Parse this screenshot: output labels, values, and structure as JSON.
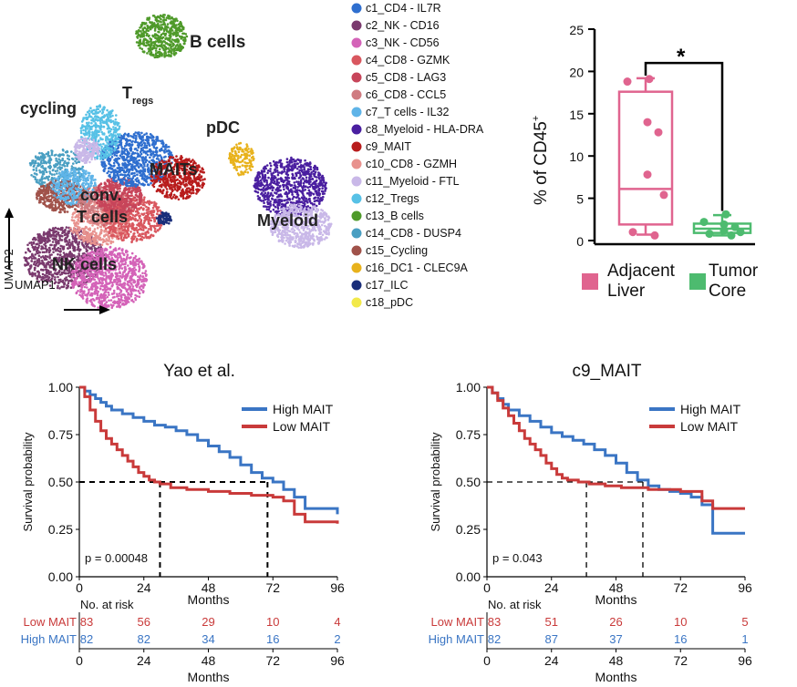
{
  "umap": {
    "axis_x": "UMAP1",
    "axis_y": "UMAP2",
    "labels": {
      "bcells": "B cells",
      "tregs_main": "T",
      "tregs_sub": "regs",
      "cycling": "cycling",
      "pdc": "pDC",
      "conv1": "conv.",
      "conv2": "T cells",
      "maits": "MAITs",
      "myeloid": "Myeloid",
      "nk": "NK cells"
    },
    "clusters": [
      {
        "label": "c1_CD4 - IL7R",
        "color": "#2f6fcf"
      },
      {
        "label": "c2_NK - CD16",
        "color": "#7a3a6e"
      },
      {
        "label": "c3_NK - CD56",
        "color": "#d463b8"
      },
      {
        "label": "c4_CD8 - GZMK",
        "color": "#d9575f"
      },
      {
        "label": "c5_CD8 - LAG3",
        "color": "#c7455a"
      },
      {
        "label": "c6_CD8 - CCL5",
        "color": "#cf7b80"
      },
      {
        "label": "c7_T cells - IL32",
        "color": "#5fb4e8"
      },
      {
        "label": "c8_Myeloid - HLA-DRA",
        "color": "#4a1fa0"
      },
      {
        "label": "c9_MAIT",
        "color": "#b81c1c"
      },
      {
        "label": "c10_CD8 - GZMH",
        "color": "#e8928e"
      },
      {
        "label": "c11_Myeloid - FTL",
        "color": "#c9b8e8"
      },
      {
        "label": "c12_Tregs",
        "color": "#57c1e6"
      },
      {
        "label": "c13_B cells",
        "color": "#4f9a2a"
      },
      {
        "label": "c14_CD8 - DUSP4",
        "color": "#4a9fc2"
      },
      {
        "label": "c15_Cycling",
        "color": "#a0524a"
      },
      {
        "label": "c16_DC1 - CLEC9A",
        "color": "#e8b21c"
      },
      {
        "label": "c17_ILC",
        "color": "#1a2e7a"
      },
      {
        "label": "c18_pDC",
        "color": "#f2e94a"
      }
    ]
  },
  "chart_data": [
    {
      "type": "box",
      "ylabel_main": "% of  CD45",
      "ylabel_sup": "+",
      "ylim": [
        0,
        25
      ],
      "yticks": [
        0,
        5,
        10,
        15,
        20,
        25
      ],
      "significance": "*",
      "groups": [
        {
          "name_line1": "Adjacent",
          "name_line2": "Liver",
          "color": "#e0648f",
          "min": 0.7,
          "q1": 1.9,
          "median": 6.1,
          "q3": 17.6,
          "max": 19.2,
          "points": [
            19.1,
            18.8,
            14.0,
            12.8,
            7.8,
            5.4,
            1.0,
            0.6
          ]
        },
        {
          "name_line1": "Tumor",
          "name_line2": "Core",
          "color": "#4dbb6f",
          "min": 0.6,
          "q1": 0.9,
          "median": 1.4,
          "q3": 2.0,
          "max": 3.0,
          "points": [
            3.1,
            2.2,
            1.9,
            1.6,
            1.2,
            1.0,
            0.8,
            0.6
          ]
        }
      ]
    },
    {
      "type": "line",
      "title": "Yao et al.",
      "xlabel": "Months",
      "ylabel": "Survival probability",
      "xlim": [
        0,
        96
      ],
      "ylim": [
        0,
        1
      ],
      "xticks": [
        0,
        24,
        48,
        72,
        96
      ],
      "yticks": [
        "0.00",
        "0.25",
        "0.50",
        "0.75",
        "1.00"
      ],
      "pvalue": "p = 0.00048",
      "median_lines": [
        30,
        70
      ],
      "series": [
        {
          "name": "High MAIT",
          "color": "#3a75c4",
          "x": [
            0,
            2,
            4,
            6,
            8,
            10,
            12,
            16,
            20,
            24,
            28,
            32,
            36,
            40,
            44,
            48,
            52,
            56,
            60,
            64,
            68,
            72,
            76,
            80,
            84,
            96
          ],
          "y": [
            1.0,
            0.98,
            0.96,
            0.94,
            0.92,
            0.9,
            0.88,
            0.86,
            0.84,
            0.82,
            0.8,
            0.79,
            0.77,
            0.75,
            0.72,
            0.69,
            0.66,
            0.63,
            0.59,
            0.55,
            0.52,
            0.5,
            0.46,
            0.42,
            0.36,
            0.33
          ]
        },
        {
          "name": "Low MAIT",
          "color": "#c93a3a",
          "x": [
            0,
            2,
            4,
            6,
            8,
            10,
            12,
            14,
            16,
            18,
            20,
            22,
            24,
            26,
            28,
            30,
            34,
            40,
            48,
            56,
            64,
            72,
            76,
            80,
            84,
            96
          ],
          "y": [
            1.0,
            0.95,
            0.88,
            0.82,
            0.77,
            0.73,
            0.7,
            0.67,
            0.64,
            0.61,
            0.58,
            0.55,
            0.53,
            0.51,
            0.5,
            0.49,
            0.47,
            0.46,
            0.45,
            0.44,
            0.43,
            0.42,
            0.4,
            0.33,
            0.29,
            0.28
          ]
        }
      ],
      "risk_table": {
        "heading": "No. at risk",
        "xlabel": "Months",
        "rows": [
          {
            "label": "Low MAIT",
            "color": "#c93a3a",
            "values": [
              "83",
              "56",
              "29",
              "10",
              "4"
            ]
          },
          {
            "label": "High MAIT",
            "color": "#3a75c4",
            "values": [
              "82",
              "82",
              "34",
              "16",
              "2"
            ]
          }
        ]
      }
    },
    {
      "type": "line",
      "title": "c9_MAIT",
      "xlabel": "Months",
      "ylabel": "Survival probability",
      "xlim": [
        0,
        96
      ],
      "ylim": [
        0,
        1
      ],
      "xticks": [
        0,
        24,
        48,
        72,
        96
      ],
      "yticks": [
        "0.00",
        "0.25",
        "0.50",
        "0.75",
        "1.00"
      ],
      "pvalue": "p = 0.043",
      "median_lines": [
        37,
        58
      ],
      "series": [
        {
          "name": "High MAIT",
          "color": "#3a75c4",
          "x": [
            0,
            2,
            4,
            6,
            8,
            12,
            16,
            20,
            24,
            28,
            32,
            36,
            40,
            44,
            48,
            52,
            56,
            60,
            64,
            68,
            72,
            76,
            80,
            84,
            96
          ],
          "y": [
            1.0,
            0.97,
            0.94,
            0.91,
            0.88,
            0.85,
            0.82,
            0.79,
            0.76,
            0.74,
            0.72,
            0.7,
            0.67,
            0.64,
            0.6,
            0.55,
            0.51,
            0.48,
            0.46,
            0.45,
            0.44,
            0.42,
            0.38,
            0.23,
            0.23
          ]
        },
        {
          "name": "Low MAIT",
          "color": "#c93a3a",
          "x": [
            0,
            2,
            4,
            6,
            8,
            10,
            12,
            14,
            16,
            18,
            20,
            22,
            24,
            26,
            28,
            30,
            34,
            38,
            44,
            50,
            60,
            72,
            80,
            84,
            96
          ],
          "y": [
            1.0,
            0.97,
            0.93,
            0.89,
            0.85,
            0.81,
            0.77,
            0.73,
            0.7,
            0.67,
            0.64,
            0.6,
            0.57,
            0.54,
            0.52,
            0.51,
            0.5,
            0.49,
            0.48,
            0.47,
            0.46,
            0.45,
            0.4,
            0.36,
            0.36
          ]
        }
      ],
      "risk_table": {
        "heading": "No. at risk",
        "xlabel": "Months",
        "rows": [
          {
            "label": "Low MAIT",
            "color": "#c93a3a",
            "values": [
              "83",
              "51",
              "26",
              "10",
              "5"
            ]
          },
          {
            "label": "High MAIT",
            "color": "#3a75c4",
            "values": [
              "82",
              "87",
              "37",
              "16",
              "1"
            ]
          }
        ]
      }
    }
  ]
}
